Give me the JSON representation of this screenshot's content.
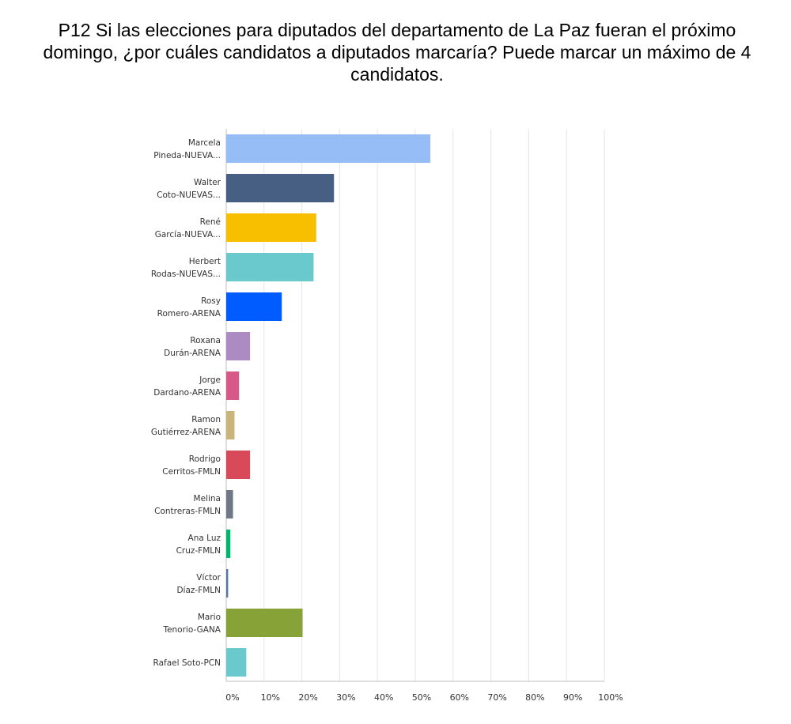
{
  "title": "P12 Si las elecciones para diputados del departamento de La Paz fueran el próximo domingo, ¿por cuáles candidatos a diputados marcaría? Puede marcar un máximo de 4 candidatos.",
  "chart_data": {
    "type": "bar",
    "orientation": "horizontal",
    "title": "P12 Si las elecciones para diputados del departamento de La Paz fueran el próximo domingo, ¿por cuáles candidatos a diputados marcaría? Puede marcar un máximo de 4 candidatos.",
    "xlim": [
      0,
      100
    ],
    "x_ticks": [
      "0%",
      "10%",
      "20%",
      "30%",
      "40%",
      "50%",
      "60%",
      "70%",
      "80%",
      "90%",
      "100%"
    ],
    "grid": true,
    "categories": [
      [
        "Marcela",
        "Pineda-NUEVA..."
      ],
      [
        "Walter",
        "Coto-NUEVAS..."
      ],
      [
        "René",
        "García-NUEVA..."
      ],
      [
        "Herbert",
        "Rodas-NUEVAS..."
      ],
      [
        "Rosy",
        "Romero-ARENA"
      ],
      [
        "Roxana",
        "Durán-ARENA"
      ],
      [
        "Jorge",
        "Dardano-ARENA"
      ],
      [
        "Ramon",
        "Gutiérrez-ARENA"
      ],
      [
        "Rodrigo",
        "Cerritos-FMLN"
      ],
      [
        "Melina",
        "Contreras-FMLN"
      ],
      [
        "Ana Luz",
        "Cruz-FMLN"
      ],
      [
        "Víctor",
        "Díaz-FMLN"
      ],
      [
        "Mario",
        "Tenorio-GANA"
      ],
      [
        "Rafael Soto-PCN"
      ]
    ],
    "values": [
      54.0,
      28.5,
      23.8,
      23.1,
      14.7,
      6.3,
      3.4,
      2.2,
      6.3,
      1.8,
      1.1,
      0.5,
      20.2,
      5.3
    ],
    "colors": [
      "#96bdf5",
      "#475f82",
      "#f7bf00",
      "#6ac9cc",
      "#005cff",
      "#ac8bc2",
      "#d6598a",
      "#c9b577",
      "#d84a5a",
      "#707885",
      "#00b86c",
      "#5677a3",
      "#87a338",
      "#6ac9cc"
    ]
  }
}
